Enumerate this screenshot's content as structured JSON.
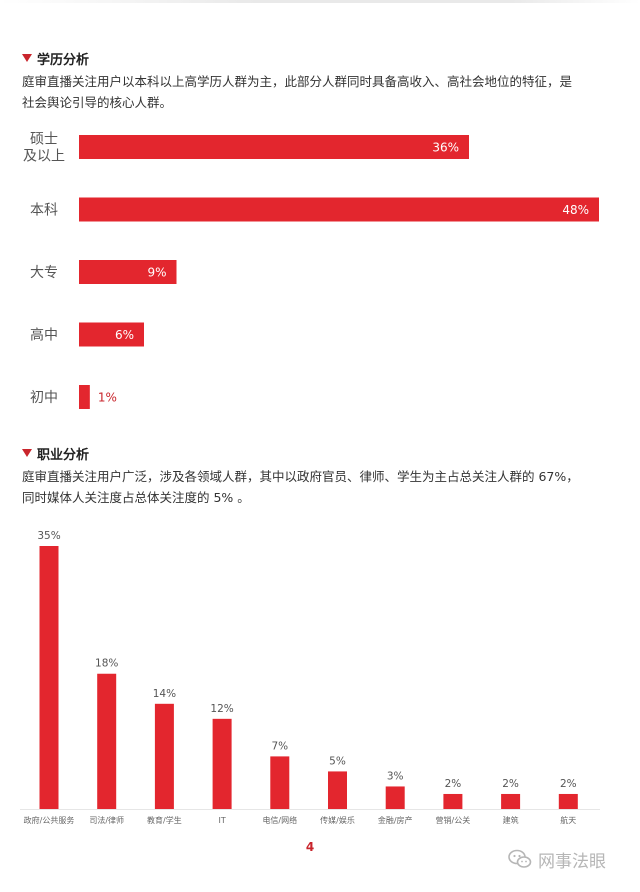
{
  "edu_section": {
    "heading": "学历分析",
    "desc_line1": "庭审直播关注用户以本科以上高学历人群为主，此部分人群同时具备高收入、高社会地位的特征，是",
    "desc_line2": "社会舆论引导的核心人群。"
  },
  "job_section": {
    "heading": "职业分析",
    "desc_line1": "庭审直播关注用户广泛，涉及各领域人群，其中以政府官员、律师、学生为主占总关注人群的 67%，",
    "desc_line2": "同时媒体人关注度占总体关注度的 5% 。"
  },
  "colors": {
    "accent": "#e3262e",
    "heading_triangle": "#c9252c"
  },
  "chart_data": [
    {
      "type": "bar",
      "orientation": "horizontal",
      "categories": [
        [
          "硕士",
          "及以上"
        ],
        [
          "本科"
        ],
        [
          "大专"
        ],
        [
          "高中"
        ],
        [
          "初中"
        ]
      ],
      "values": [
        36,
        48,
        9,
        6,
        1
      ],
      "value_labels": [
        "36%",
        "48%",
        "9%",
        "6%",
        "1%"
      ],
      "xlim": [
        0,
        48
      ],
      "grid": false
    },
    {
      "type": "bar",
      "orientation": "vertical",
      "categories": [
        "政府/公共服务",
        "司法/律师",
        "教育/学生",
        "IT",
        "电信/网络",
        "传媒/娱乐",
        "金融/房产",
        "营销/公关",
        "建筑",
        "航天"
      ],
      "values": [
        35,
        18,
        14,
        12,
        7,
        5,
        3,
        2,
        2,
        2
      ],
      "value_labels": [
        "35%",
        "18%",
        "14%",
        "12%",
        "7%",
        "5%",
        "3%",
        "2%",
        "2%",
        "2%"
      ],
      "ylim": [
        0,
        35
      ],
      "grid": false
    }
  ],
  "footer": {
    "page_number": "4",
    "watermark_text": "网事法眼",
    "watermark_icon": "wechat-icon"
  }
}
